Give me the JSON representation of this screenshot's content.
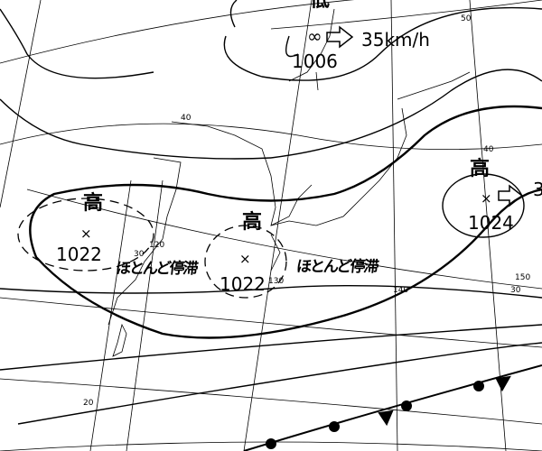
{
  "low": {
    "symbol": "低",
    "center_mark": "∞",
    "pressure": "1006",
    "motion": "35km/h"
  },
  "highs": [
    {
      "symbol": "高",
      "center_mark": "×",
      "pressure": "1022",
      "note": "ほとんど停滞"
    },
    {
      "symbol": "高",
      "center_mark": "×",
      "pressure": "1022",
      "note": "ほとんど停滞"
    },
    {
      "symbol": "高",
      "center_mark": "×",
      "pressure": "1024",
      "motion_partial": "3"
    }
  ],
  "grid_labels": {
    "lat_50": "50",
    "lat_40_west": "40",
    "lat_40_east": "40",
    "lat_30_west": "30",
    "lat_30_east": "30",
    "lat_20": "20",
    "lon_120": "120",
    "lon_130": "130",
    "lon_140": "140",
    "lon_150": "150"
  },
  "colors": {
    "lines": "#000000",
    "background": "#ffffff"
  }
}
